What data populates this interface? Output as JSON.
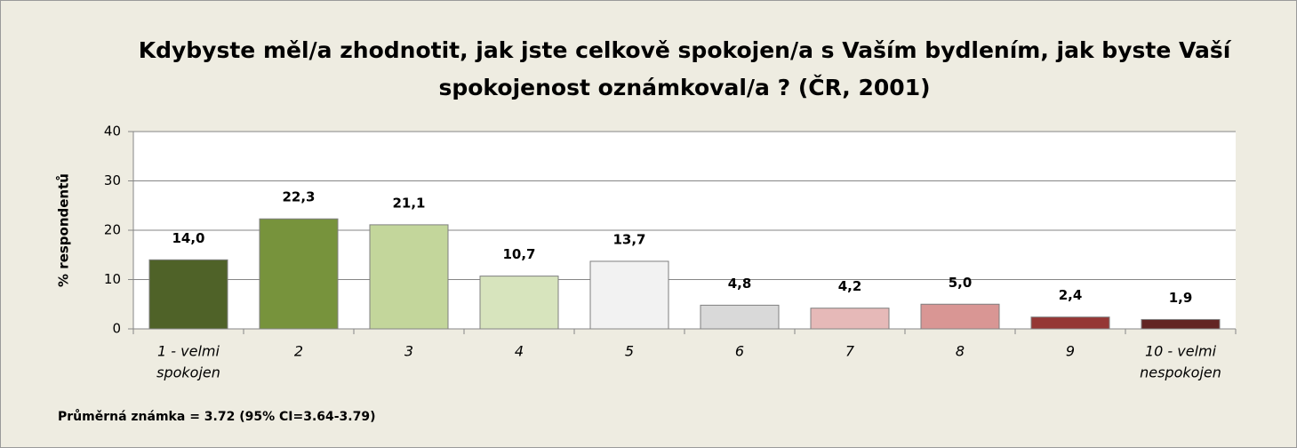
{
  "chart_data": {
    "type": "bar",
    "title": [
      "Kdybyste měl/a zhodnotit, jak jste celkově spokojen/a s Vaším bydlením, jak byste Vaší",
      "spokojenost oznámkoval/a ? (ČR, 2001)"
    ],
    "y_label": "% respondentů",
    "categories": [
      [
        "1 - velmi",
        "spokojen"
      ],
      [
        "2"
      ],
      [
        "3"
      ],
      [
        "4"
      ],
      [
        "5"
      ],
      [
        "6"
      ],
      [
        "7"
      ],
      [
        "8"
      ],
      [
        "9"
      ],
      [
        "10 - velmi",
        "nespokojen"
      ]
    ],
    "values": [
      14.0,
      22.3,
      21.1,
      10.7,
      13.7,
      4.8,
      4.2,
      5.0,
      2.4,
      1.9
    ],
    "value_labels": [
      "14,0",
      "22,3",
      "21,1",
      "10,7",
      "13,7",
      "4,8",
      "4,2",
      "5,0",
      "2,4",
      "1,9"
    ],
    "colors": [
      "#4f6228",
      "#77933c",
      "#c3d69b",
      "#d7e4bd",
      "#f2f2f2",
      "#d9d9d9",
      "#e6b9b8",
      "#d99694",
      "#953735",
      "#632523"
    ],
    "ylim": [
      0,
      40
    ],
    "yticks": [
      0,
      10,
      20,
      30,
      40
    ],
    "grid": true,
    "annotation": "Průměrná známka = 3.72 (95% CI=3.64-3.79)"
  }
}
